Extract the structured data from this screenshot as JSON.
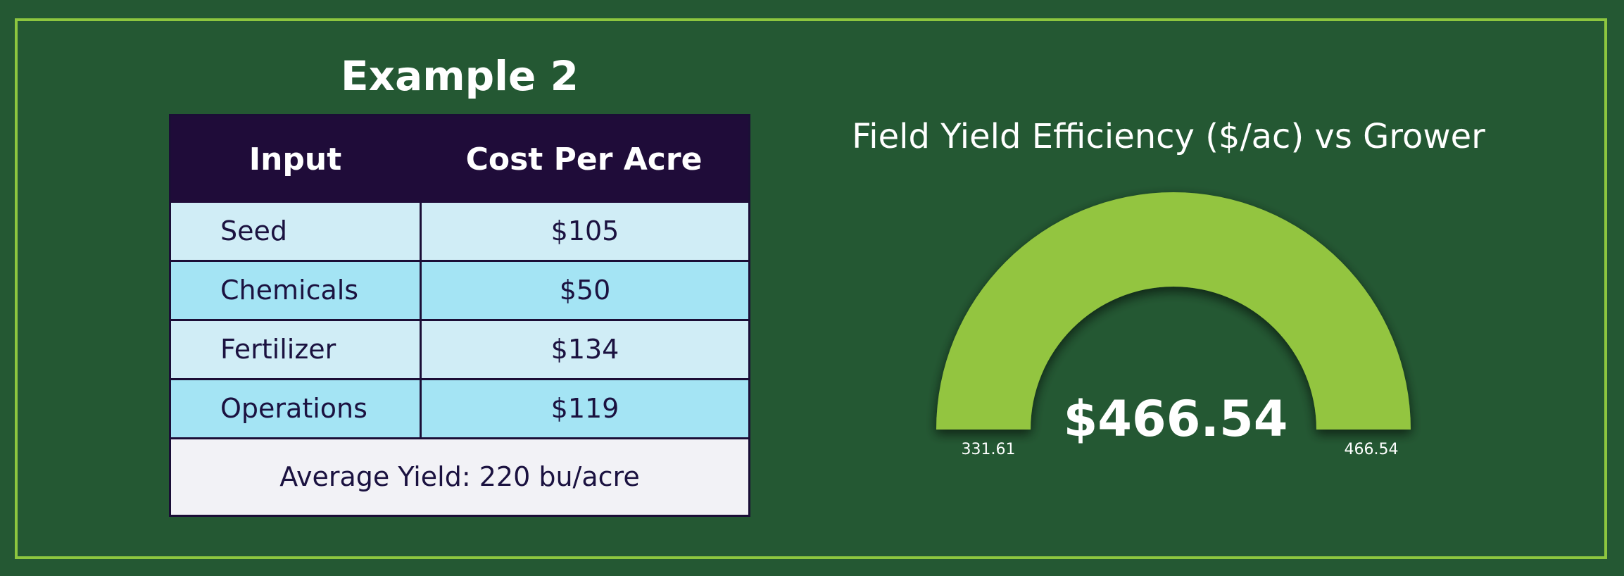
{
  "title": "Example 2",
  "table": {
    "headers": [
      "Input",
      "Cost Per Acre"
    ],
    "rows": [
      {
        "input": "Seed",
        "cost": "$105"
      },
      {
        "input": "Chemicals",
        "cost": "$50"
      },
      {
        "input": "Fertilizer",
        "cost": "$134"
      },
      {
        "input": "Operations",
        "cost": "$119"
      }
    ],
    "footer": "Average Yield: 220 bu/acre"
  },
  "gauge": {
    "title": "Field Yield Efficiency ($/ac) vs Grower",
    "value_label": "$466.54",
    "min_label": "331.61",
    "max_label": "466.54",
    "value": 466.54,
    "min": 331.61,
    "max": 466.54,
    "fill_color": "#93c53f",
    "track_color": "#245833"
  },
  "colors": {
    "background": "#245833",
    "border": "#8dc63f",
    "header": "#1f0c39",
    "row_light": "#d0edf6",
    "row_dark": "#a4e4f4"
  }
}
